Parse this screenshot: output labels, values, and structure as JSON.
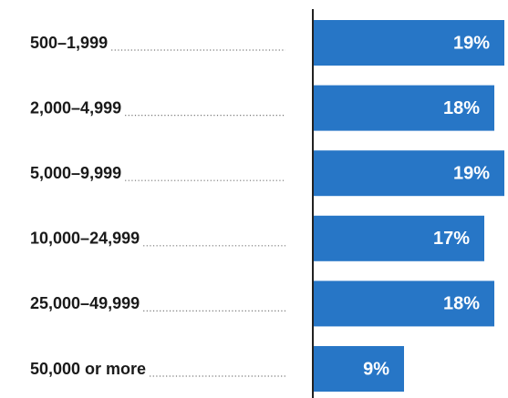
{
  "chart_data": {
    "type": "bar",
    "orientation": "horizontal",
    "categories": [
      "500–1,999",
      "2,000–4,999",
      "5,000–9,999",
      "10,000–24,999",
      "25,000–49,999",
      "50,000 or more"
    ],
    "values": [
      19,
      18,
      19,
      17,
      18,
      9
    ],
    "value_labels": [
      "19%",
      "18%",
      "19%",
      "17%",
      "18%",
      "9%"
    ],
    "color": "#2776c6"
  }
}
